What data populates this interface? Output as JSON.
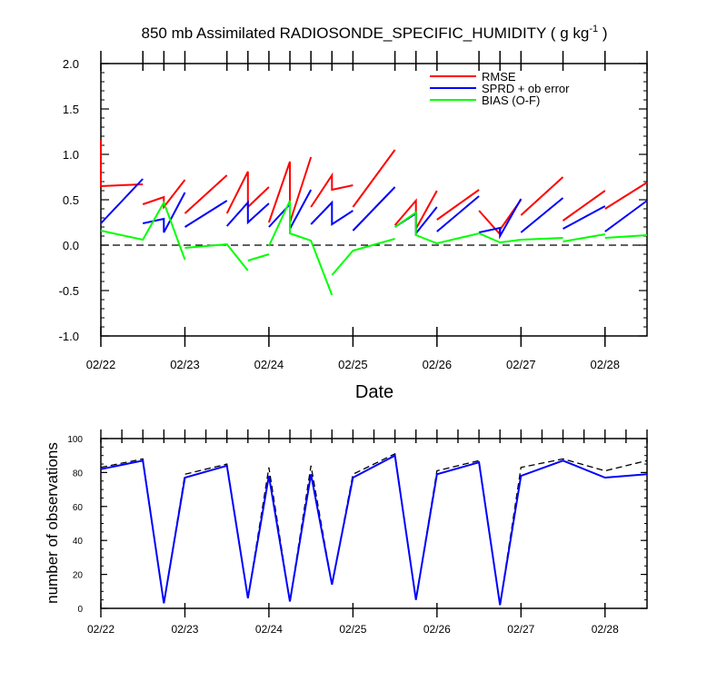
{
  "chart_data": [
    {
      "type": "line",
      "title": "850 mb Assimilated RADIOSONDE_SPECIFIC_HUMIDITY ( g kg",
      "title_superscript": "-1",
      "title_suffix": " )",
      "xlabel": "Date",
      "ylabel": "",
      "xlim": [
        0,
        6.5
      ],
      "ylim": [
        -1.0,
        2.0
      ],
      "x_ticks": [
        0,
        1,
        2,
        3,
        4,
        5,
        6
      ],
      "x_tick_labels": [
        "02/22",
        "02/23",
        "02/24",
        "02/25",
        "02/26",
        "02/27",
        "02/28"
      ],
      "y_ticks": [
        -1.0,
        -0.5,
        0.0,
        0.5,
        1.0,
        1.5,
        2.0
      ],
      "y_tick_labels": [
        "-1.0",
        "-0.5",
        "0.0",
        "0.5",
        "1.0",
        "1.5",
        "2.0"
      ],
      "top_ticks": [
        0,
        0.5,
        0.75,
        1,
        1.5,
        1.75,
        2,
        2.25,
        2.5,
        2.75,
        3,
        3.5,
        3.75,
        4,
        4.5,
        4.75,
        5,
        5.5,
        6,
        6.5
      ],
      "reference_line": {
        "y": 0,
        "style": "dashed",
        "color": "#000000"
      },
      "legend_position": "top-right",
      "series": [
        {
          "name": "RMSE",
          "color": "#ff0000",
          "segments": [
            [
              [
                0,
                1.16
              ],
              [
                0,
                0.65
              ],
              [
                0.5,
                0.67
              ]
            ],
            [
              [
                0.5,
                0.45
              ],
              [
                0.75,
                0.53
              ],
              [
                0.75,
                0.42
              ],
              [
                1,
                0.72
              ]
            ],
            [
              [
                1,
                0.35
              ],
              [
                1.5,
                0.77
              ]
            ],
            [
              [
                1.5,
                0.35
              ],
              [
                1.75,
                0.81
              ],
              [
                1.75,
                0.42
              ],
              [
                2,
                0.64
              ]
            ],
            [
              [
                2,
                0.25
              ],
              [
                2.25,
                0.92
              ],
              [
                2.25,
                0.25
              ],
              [
                2.5,
                0.97
              ]
            ],
            [
              [
                2.5,
                0.42
              ],
              [
                2.75,
                0.77
              ],
              [
                2.75,
                0.61
              ],
              [
                3,
                0.66
              ]
            ],
            [
              [
                3,
                0.42
              ],
              [
                3.5,
                1.05
              ]
            ],
            [
              [
                3.5,
                0.22
              ],
              [
                3.75,
                0.49
              ],
              [
                3.75,
                0.18
              ],
              [
                4,
                0.6
              ]
            ],
            [
              [
                4,
                0.28
              ],
              [
                4.5,
                0.61
              ]
            ],
            [
              [
                4.5,
                0.38
              ],
              [
                4.75,
                0.12
              ],
              [
                4.75,
                0.17
              ],
              [
                5,
                0.5
              ]
            ],
            [
              [
                5,
                0.33
              ],
              [
                5.5,
                0.75
              ]
            ],
            [
              [
                5.5,
                0.27
              ],
              [
                6,
                0.6
              ]
            ],
            [
              [
                6,
                0.4
              ],
              [
                6.5,
                0.69
              ]
            ]
          ]
        },
        {
          "name": "SPRD + ob error",
          "color": "#0000ff",
          "segments": [
            [
              [
                0,
                0.24
              ],
              [
                0.5,
                0.73
              ]
            ],
            [
              [
                0.5,
                0.24
              ],
              [
                0.75,
                0.29
              ],
              [
                0.75,
                0.14
              ],
              [
                1,
                0.58
              ]
            ],
            [
              [
                1,
                0.2
              ],
              [
                1.5,
                0.49
              ]
            ],
            [
              [
                1.5,
                0.21
              ],
              [
                1.75,
                0.47
              ],
              [
                1.75,
                0.25
              ],
              [
                2,
                0.46
              ]
            ],
            [
              [
                2,
                0.2
              ],
              [
                2.25,
                0.45
              ],
              [
                2.25,
                0.18
              ],
              [
                2.5,
                0.61
              ]
            ],
            [
              [
                2.5,
                0.23
              ],
              [
                2.75,
                0.47
              ],
              [
                2.75,
                0.23
              ],
              [
                3,
                0.38
              ]
            ],
            [
              [
                3,
                0.16
              ],
              [
                3.5,
                0.64
              ]
            ],
            [
              [
                3.5,
                0.2
              ],
              [
                3.75,
                0.35
              ],
              [
                3.75,
                0.13
              ],
              [
                4,
                0.42
              ]
            ],
            [
              [
                4,
                0.15
              ],
              [
                4.5,
                0.54
              ]
            ],
            [
              [
                4.5,
                0.14
              ],
              [
                4.75,
                0.19
              ],
              [
                4.75,
                0.1
              ],
              [
                5,
                0.51
              ]
            ],
            [
              [
                5,
                0.14
              ],
              [
                5.5,
                0.52
              ]
            ],
            [
              [
                5.5,
                0.18
              ],
              [
                6,
                0.43
              ]
            ],
            [
              [
                6,
                0.15
              ],
              [
                6.5,
                0.49
              ]
            ]
          ]
        },
        {
          "name": "BIAS (O-F)",
          "color": "#00ff00",
          "segments": [
            [
              [
                0,
                0.16
              ],
              [
                0.5,
                0.06
              ],
              [
                0.75,
                0.47
              ],
              [
                1,
                -0.16
              ]
            ],
            [
              [
                1,
                -0.03
              ],
              [
                1.5,
                0.01
              ],
              [
                1.75,
                -0.28
              ]
            ],
            [
              [
                1.75,
                -0.17
              ],
              [
                2,
                -0.1
              ]
            ],
            [
              [
                2,
                -0.01
              ],
              [
                2.25,
                0.49
              ],
              [
                2.25,
                0.13
              ],
              [
                2.5,
                0.05
              ],
              [
                2.75,
                -0.55
              ]
            ],
            [
              [
                2.75,
                -0.33
              ],
              [
                3,
                -0.06
              ],
              [
                3.5,
                0.07
              ]
            ],
            [
              [
                3.5,
                0.2
              ],
              [
                3.75,
                0.36
              ],
              [
                3.75,
                0.11
              ],
              [
                4,
                0.02
              ],
              [
                4.5,
                0.13
              ],
              [
                4.75,
                0.03
              ],
              [
                5,
                0.06
              ],
              [
                5.5,
                0.08
              ]
            ],
            [
              [
                5.5,
                0.04
              ],
              [
                6,
                0.12
              ]
            ],
            [
              [
                6,
                0.08
              ],
              [
                6.5,
                0.11
              ]
            ]
          ]
        }
      ]
    },
    {
      "type": "line",
      "title": "",
      "xlabel": "",
      "ylabel": "number of observations",
      "xlim": [
        0,
        6.5
      ],
      "ylim": [
        0,
        100
      ],
      "x_ticks": [
        0,
        1,
        2,
        3,
        4,
        5,
        6
      ],
      "x_tick_labels": [
        "02/22",
        "02/23",
        "02/24",
        "02/25",
        "02/26",
        "02/27",
        "02/28"
      ],
      "y_ticks": [
        0,
        20,
        40,
        60,
        80,
        100
      ],
      "y_tick_labels": [
        "0",
        "20",
        "40",
        "60",
        "80",
        "100"
      ],
      "series": [
        {
          "color": "#000000",
          "style": "dashed",
          "x": [
            0,
            0.5,
            0.75,
            1,
            1.5,
            1.75,
            2,
            2.25,
            2.5,
            2.75,
            3,
            3.5,
            3.75,
            4,
            4.5,
            4.75,
            5,
            5.5,
            6,
            6.5
          ],
          "values": [
            83,
            88,
            3,
            79,
            85,
            6,
            83,
            4,
            84,
            14,
            79,
            91,
            5,
            81,
            87,
            2,
            83,
            88,
            81,
            87
          ]
        },
        {
          "color": "#0000ff",
          "style": "solid",
          "x": [
            0,
            0.5,
            0.75,
            1,
            1.5,
            1.75,
            2,
            2.25,
            2.5,
            2.75,
            3,
            3.5,
            3.75,
            4,
            4.5,
            4.75,
            5,
            5.5,
            6,
            6.5
          ],
          "values": [
            82,
            87,
            3,
            77,
            84,
            6,
            78,
            4,
            79,
            14,
            77,
            90,
            5,
            79,
            86,
            2,
            78,
            87,
            77,
            79
          ]
        }
      ]
    }
  ]
}
